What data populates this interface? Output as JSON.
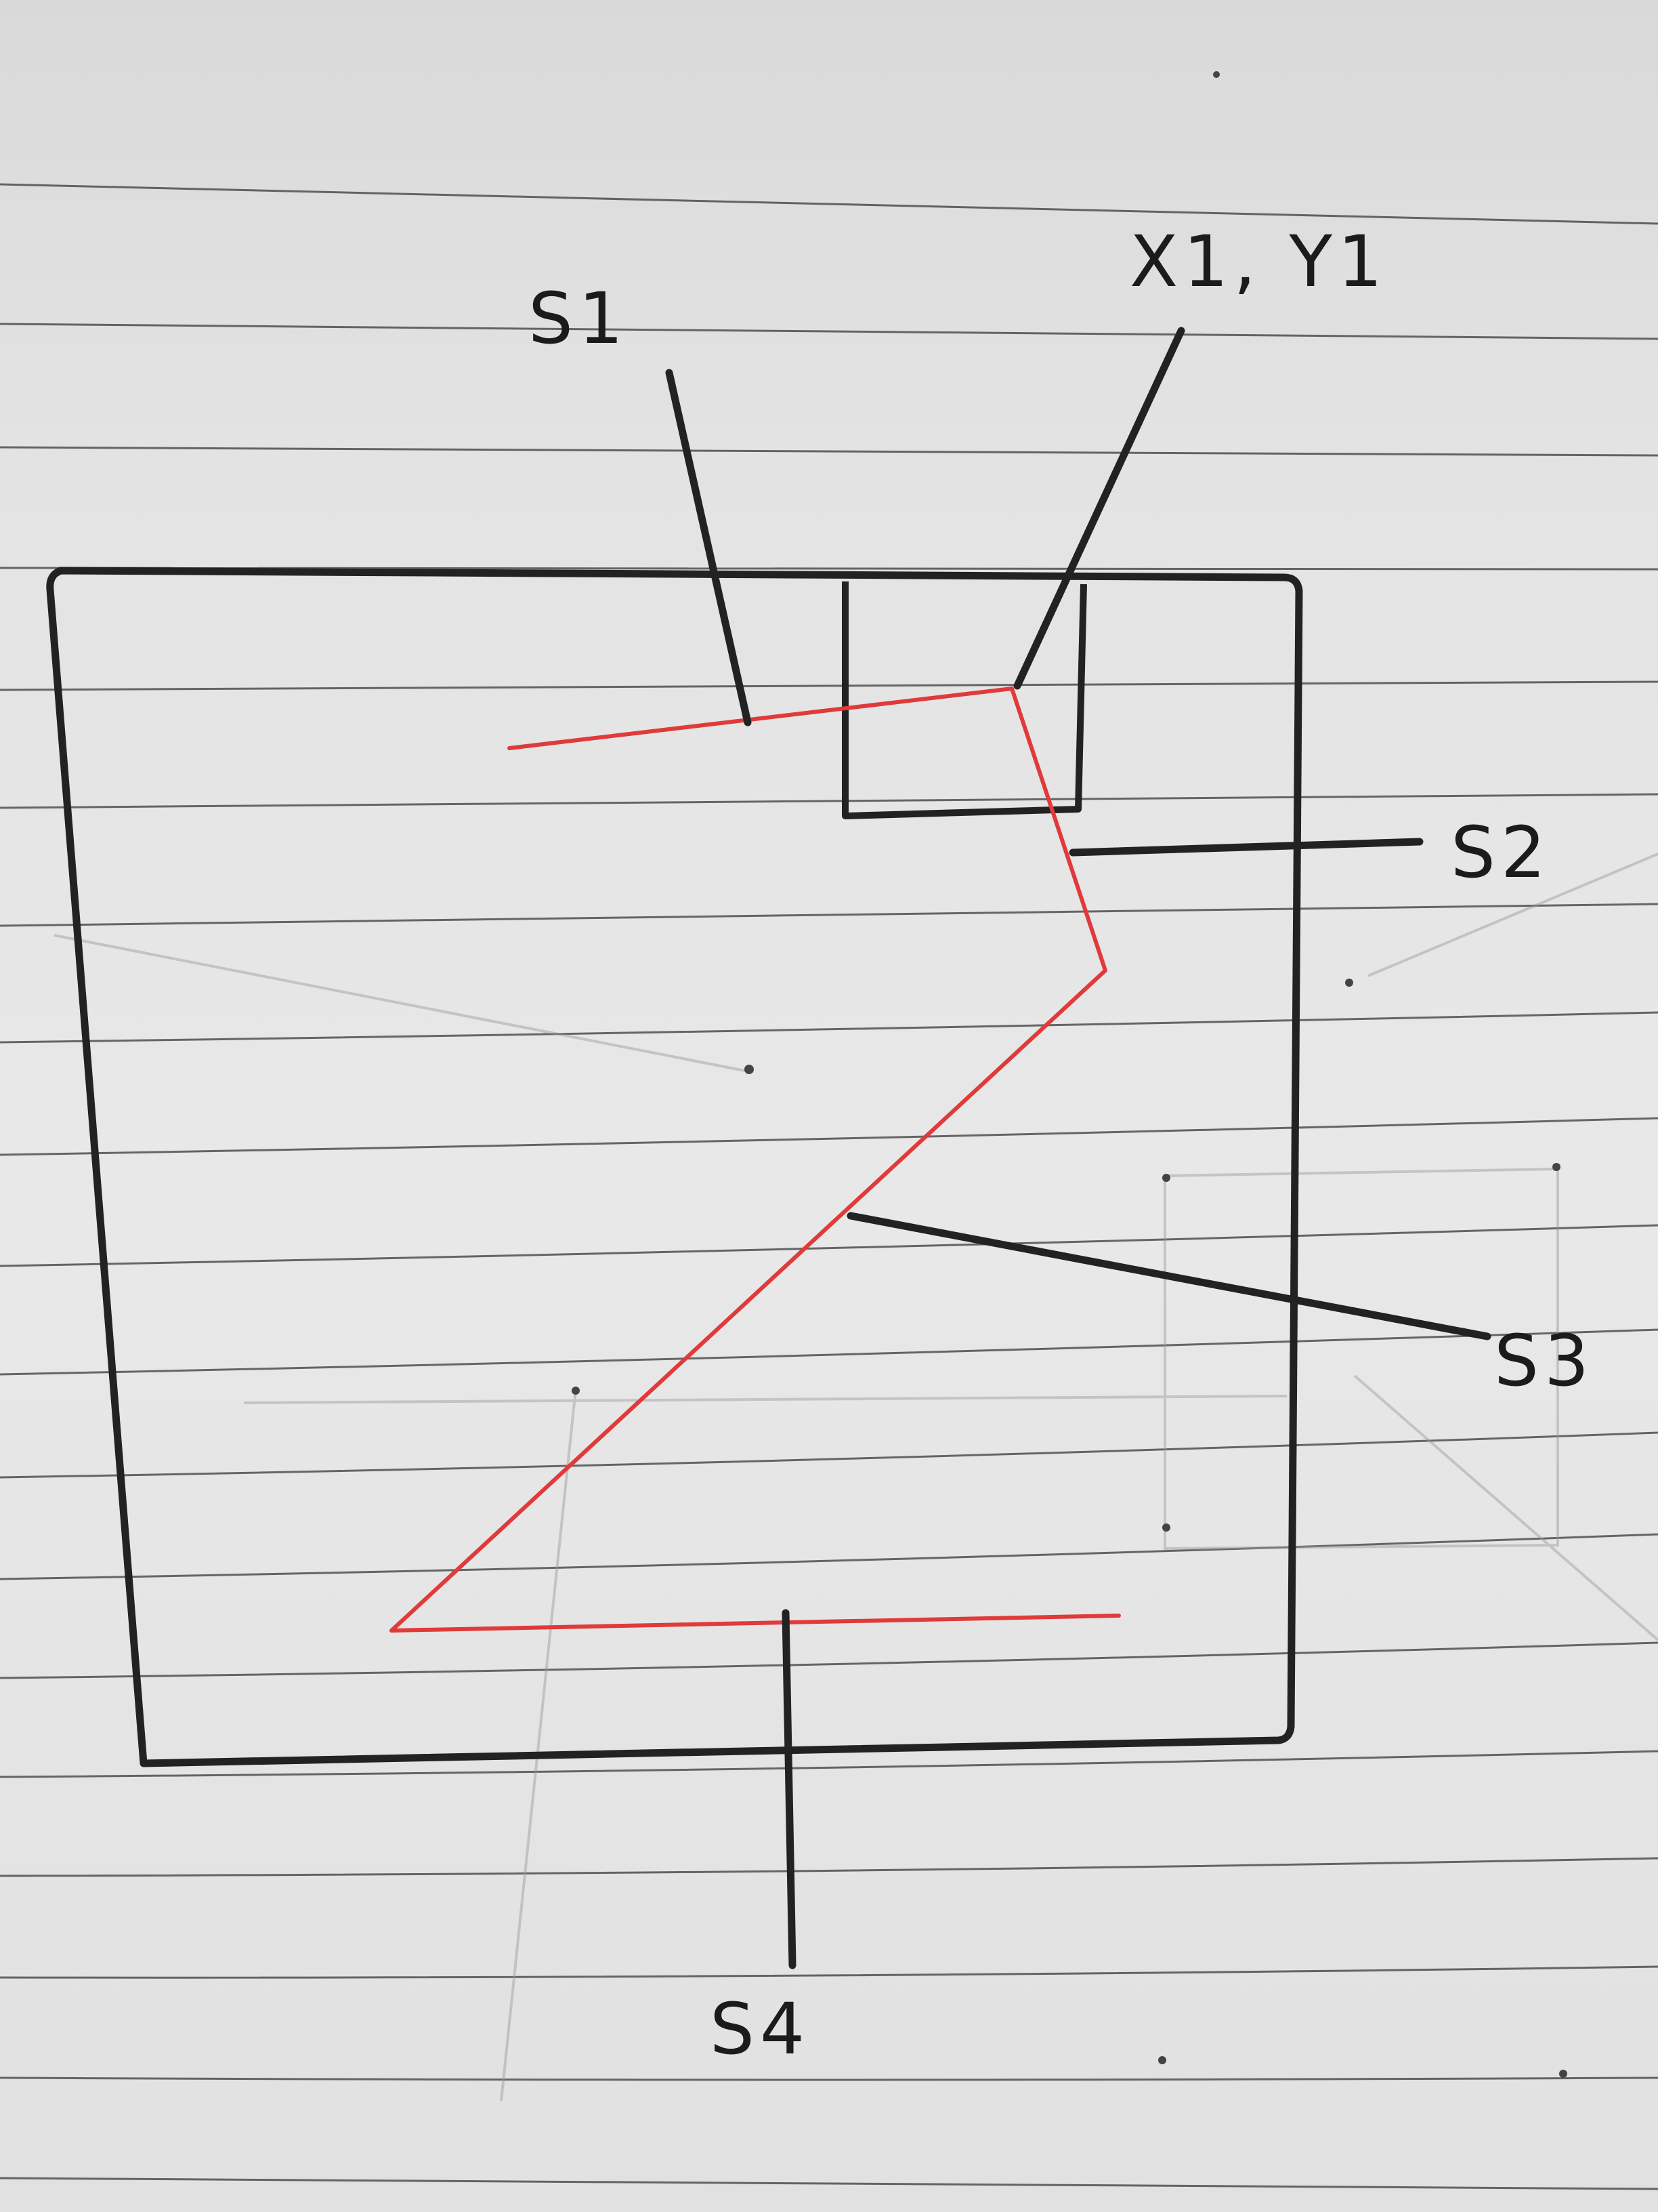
{
  "labels": {
    "s1": "S1",
    "x1y1": "X1, Y1",
    "s2": "S2",
    "s3": "S3",
    "s4": "S4"
  },
  "colors": {
    "paper": "#e4e4e4",
    "ruled_line": "#3a3a3a",
    "ink": "#222222",
    "path": "#e03a3a"
  }
}
